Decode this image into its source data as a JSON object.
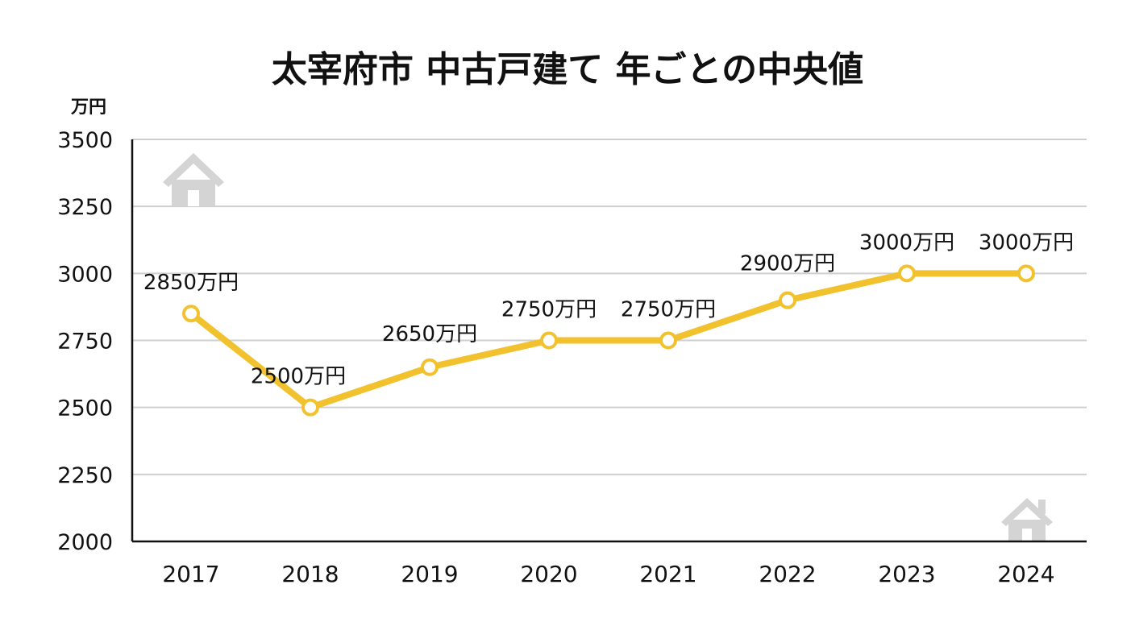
{
  "chart_data": {
    "type": "line",
    "title": "太宰府市 中古戸建て 年ごとの中央値",
    "unit_label": "万円",
    "categories": [
      "2017",
      "2018",
      "2019",
      "2020",
      "2021",
      "2022",
      "2023",
      "2024"
    ],
    "values": [
      2850,
      2500,
      2650,
      2750,
      2750,
      2900,
      3000,
      3000
    ],
    "data_labels": [
      "2850万円",
      "2500万円",
      "2650万円",
      "2750万円",
      "2750万円",
      "2900万円",
      "3000万円",
      "3000万円"
    ],
    "ylim": [
      2000,
      3500
    ],
    "yticks": [
      "2000",
      "2250",
      "2500",
      "2750",
      "3000",
      "3250",
      "3500"
    ],
    "grid": true,
    "line_color": "#F2C12E",
    "marker_fill": "#FFFFFF",
    "decorations": [
      "house-icon",
      "house-icon"
    ]
  }
}
